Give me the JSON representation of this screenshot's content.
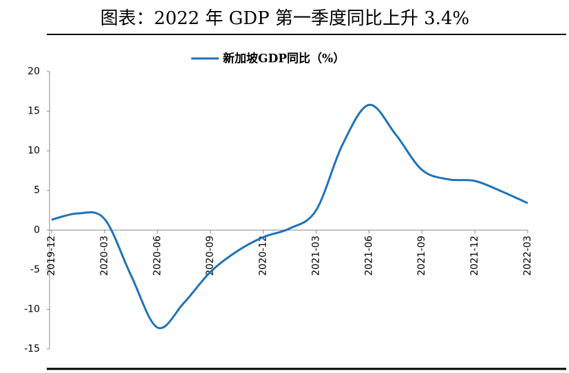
{
  "chart_data": {
    "type": "line",
    "title": "图表：2022 年 GDP 第一季度同比上升 3.4%",
    "categories": [
      "2019-12",
      null,
      "2020-03",
      null,
      "2020-06",
      null,
      "2020-09",
      null,
      "2020-12",
      null,
      "2021-03",
      null,
      "2021-06",
      null,
      "2021-09",
      null,
      "2021-12",
      null,
      "2022-03"
    ],
    "series": [
      {
        "name": "新加坡GDP同比（%）",
        "color": "#1f72b8",
        "values": [
          1.3,
          2.1,
          1.4,
          -5.7,
          -12.3,
          -9.2,
          -5.3,
          -2.7,
          -0.9,
          0.2,
          2.5,
          10.8,
          15.8,
          12.1,
          7.6,
          6.4,
          6.2,
          4.9,
          3.4
        ]
      }
    ],
    "ylim": [
      -15,
      20
    ],
    "yticks": [
      -15,
      -10,
      -5,
      0,
      5,
      10,
      15,
      20
    ],
    "grid": false,
    "legend": "top"
  }
}
